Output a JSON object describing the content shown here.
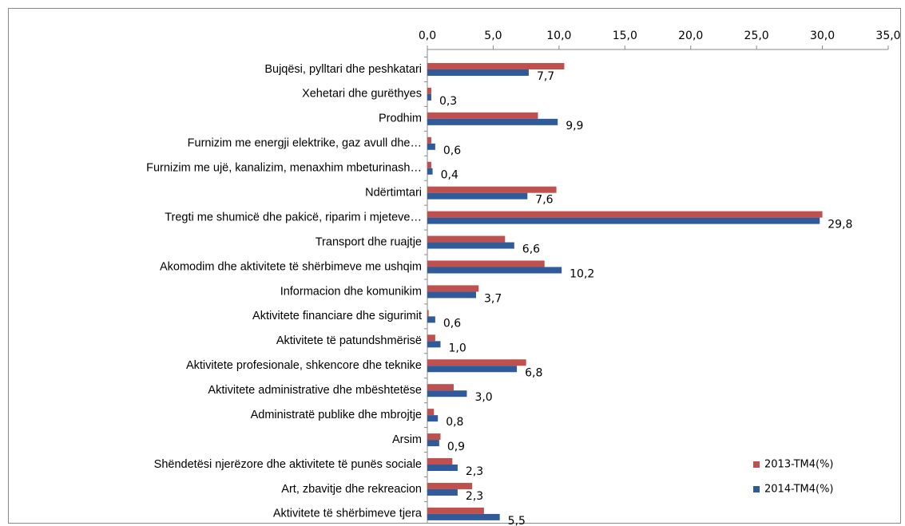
{
  "chart_data": {
    "type": "hbar",
    "categories": [
      "Bujqësi, pylltari dhe peshkatari",
      "Xehetari dhe gurëthyes",
      "Prodhim",
      "Furnizim me energji elektrike, gaz avull dhe…",
      "Furnizim me ujë, kanalizim, menaxhim mbeturinash…",
      "Ndërtimtari",
      "Tregti me shumicë dhe pakicë, riparim i mjeteve…",
      "Transport dhe ruajtje",
      "Akomodim dhe aktivitete të shërbimeve  me ushqim",
      "Informacion dhe komunikim",
      "Aktivitete financiare dhe sigurimit",
      "Aktivitete të patundshmërisë",
      "Aktivitete profesionale, shkencore dhe teknike",
      "Aktivitete administrative dhe mbështetëse",
      "Administratë publike dhe mbrojtje",
      "Arsim",
      "Shëndetësi njerëzore dhe aktivitete të punës sociale",
      "Art, zbavitje dhe rekreacion",
      "Aktivitete të shërbimeve tjera"
    ],
    "series": [
      {
        "name": "2013-TM4(%)",
        "color": "#c0504d",
        "values": [
          10.4,
          0.3,
          8.4,
          0.3,
          0.3,
          9.8,
          30.0,
          5.9,
          8.9,
          3.9,
          0.1,
          0.6,
          7.5,
          2.0,
          0.5,
          1.0,
          1.9,
          3.4,
          4.3
        ]
      },
      {
        "name": "2014-TM4(%)",
        "color": "#305b9a",
        "values": [
          7.7,
          0.3,
          9.9,
          0.6,
          0.4,
          7.6,
          29.8,
          6.6,
          10.2,
          3.7,
          0.6,
          1.0,
          6.8,
          3.0,
          0.8,
          0.9,
          2.3,
          2.3,
          5.5
        ],
        "value_labels": [
          "7,7",
          "0,3",
          "9,9",
          "0,6",
          "0,4",
          "7,6",
          "29,8",
          "6,6",
          "10,2",
          "3,7",
          "0,6",
          "1,0",
          "6,8",
          "3,0",
          "0,8",
          "0,9",
          "2,3",
          "2,3",
          "5,5"
        ]
      }
    ],
    "xlim": [
      0,
      35
    ],
    "xticks": [
      {
        "value": 0,
        "label": "0,0"
      },
      {
        "value": 5,
        "label": "5,0"
      },
      {
        "value": 10,
        "label": "10,0"
      },
      {
        "value": 15,
        "label": "15,0"
      },
      {
        "value": 20,
        "label": "20,0"
      },
      {
        "value": 25,
        "label": "25,0"
      },
      {
        "value": 30,
        "label": "30,0"
      },
      {
        "value": 35,
        "label": "35,0"
      }
    ],
    "legend": "lower right"
  }
}
